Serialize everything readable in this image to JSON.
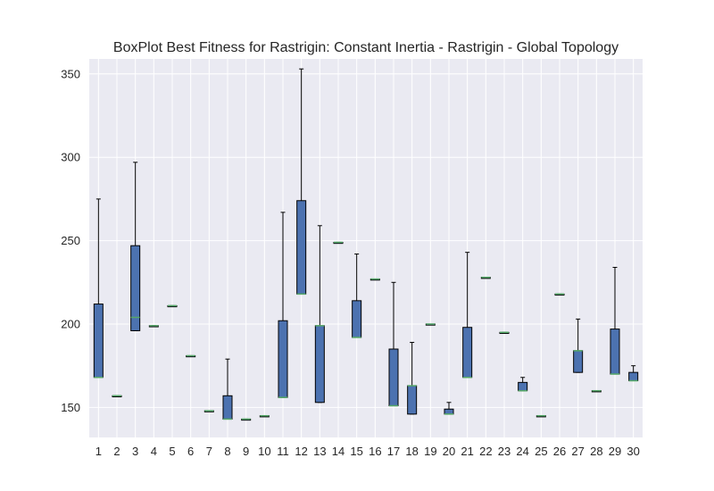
{
  "chart_data": {
    "type": "box",
    "title": "BoxPlot Best Fitness for Rastrigin: Constant Inertia - Rastrigin - Global Topology",
    "xlabel": "",
    "ylabel": "",
    "categories": [
      "1",
      "2",
      "3",
      "4",
      "5",
      "6",
      "7",
      "8",
      "9",
      "10",
      "11",
      "12",
      "13",
      "14",
      "15",
      "16",
      "17",
      "18",
      "19",
      "20",
      "21",
      "22",
      "23",
      "24",
      "25",
      "26",
      "27",
      "28",
      "29",
      "30"
    ],
    "y_ticks": [
      150,
      200,
      250,
      300,
      350
    ],
    "ylim": [
      132,
      359
    ],
    "grid": true,
    "boxes": [
      {
        "whislo": 168,
        "q1": 168,
        "med": 168,
        "q3": 212,
        "whishi": 275
      },
      {
        "whislo": 157,
        "q1": 157,
        "med": 157,
        "q3": 157,
        "whishi": 157
      },
      {
        "whislo": 196,
        "q1": 196,
        "med": 204,
        "q3": 247,
        "whishi": 297
      },
      {
        "whislo": 199,
        "q1": 199,
        "med": 199,
        "q3": 199,
        "whishi": 199
      },
      {
        "whislo": 211,
        "q1": 211,
        "med": 211,
        "q3": 211,
        "whishi": 211
      },
      {
        "whislo": 181,
        "q1": 181,
        "med": 181,
        "q3": 181,
        "whishi": 181
      },
      {
        "whislo": 148,
        "q1": 148,
        "med": 148,
        "q3": 148,
        "whishi": 148
      },
      {
        "whislo": 143,
        "q1": 143,
        "med": 143,
        "q3": 157,
        "whishi": 179
      },
      {
        "whislo": 143,
        "q1": 143,
        "med": 143,
        "q3": 143,
        "whishi": 143
      },
      {
        "whislo": 145,
        "q1": 145,
        "med": 145,
        "q3": 145,
        "whishi": 145
      },
      {
        "whislo": 156,
        "q1": 156,
        "med": 156,
        "q3": 202,
        "whishi": 267
      },
      {
        "whislo": 218,
        "q1": 218,
        "med": 218,
        "q3": 274,
        "whishi": 353
      },
      {
        "whislo": 153,
        "q1": 153,
        "med": 199,
        "q3": 199,
        "whishi": 259
      },
      {
        "whislo": 249,
        "q1": 249,
        "med": 249,
        "q3": 249,
        "whishi": 249
      },
      {
        "whislo": 192,
        "q1": 192,
        "med": 192,
        "q3": 214,
        "whishi": 242
      },
      {
        "whislo": 227,
        "q1": 227,
        "med": 227,
        "q3": 227,
        "whishi": 227
      },
      {
        "whislo": 151,
        "q1": 151,
        "med": 151,
        "q3": 185,
        "whishi": 225
      },
      {
        "whislo": 146,
        "q1": 146,
        "med": 163,
        "q3": 163,
        "whishi": 189
      },
      {
        "whislo": 200,
        "q1": 200,
        "med": 200,
        "q3": 200,
        "whishi": 200
      },
      {
        "whislo": 146,
        "q1": 146,
        "med": 146,
        "q3": 149,
        "whishi": 153
      },
      {
        "whislo": 168,
        "q1": 168,
        "med": 168,
        "q3": 198,
        "whishi": 243
      },
      {
        "whislo": 228,
        "q1": 228,
        "med": 228,
        "q3": 228,
        "whishi": 228
      },
      {
        "whislo": 195,
        "q1": 195,
        "med": 195,
        "q3": 195,
        "whishi": 195
      },
      {
        "whislo": 160,
        "q1": 160,
        "med": 160,
        "q3": 165,
        "whishi": 168
      },
      {
        "whislo": 145,
        "q1": 145,
        "med": 145,
        "q3": 145,
        "whishi": 145
      },
      {
        "whislo": 218,
        "q1": 218,
        "med": 218,
        "q3": 218,
        "whishi": 218
      },
      {
        "whislo": 171,
        "q1": 171,
        "med": 184,
        "q3": 184,
        "whishi": 203
      },
      {
        "whislo": 160,
        "q1": 160,
        "med": 160,
        "q3": 160,
        "whishi": 160
      },
      {
        "whislo": 170,
        "q1": 170,
        "med": 170,
        "q3": 197,
        "whishi": 234
      },
      {
        "whislo": 166,
        "q1": 166,
        "med": 166,
        "q3": 171,
        "whishi": 175
      }
    ],
    "colors": {
      "plot_bg": "#eaeaf2",
      "grid": "#ffffff",
      "box_fill": "#4c72b0",
      "box_edge": "#000000",
      "median": "#55a868",
      "whisker": "#000000",
      "text": "#262626"
    }
  }
}
